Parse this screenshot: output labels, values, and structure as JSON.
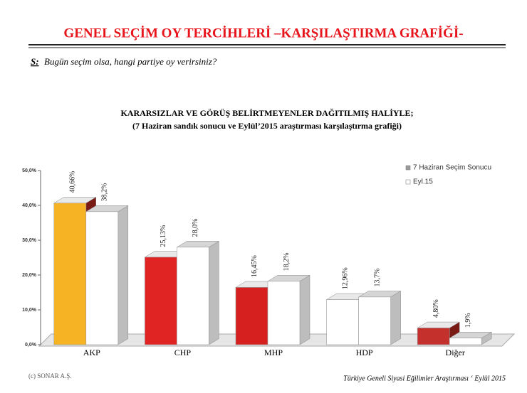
{
  "header": {
    "title": "GENEL SEÇİM OY TERCİHLERİ –KARŞILAŞTIRMA GRAFİĞİ-",
    "question_label": "S:",
    "question": "Bugün seçim olsa, hangi partiye oy verirsiniz?"
  },
  "footer": {
    "left": "(c) SONAR A.Ş.",
    "right": "Türkiye Geneli Siyasi Eğilimler Araştırması ‘ Eylül 2015"
  },
  "chart_data": {
    "type": "bar",
    "title": "KARARSIZLAR VE GÖRÜŞ BELİRTMEYENLER DAĞITILMIŞ HALİYLE;",
    "subtitle": "(7 Haziran sandık sonucu ve Eylül’2015 araştırması karşılaştırma grafiği)",
    "categories": [
      "AKP",
      "CHP",
      "MHP",
      "HDP",
      "Diğer"
    ],
    "series": [
      {
        "name": "7 Haziran Seçim Sonucu",
        "color": "#9a9a9a",
        "colors": [
          "#f6b425",
          "#e02424",
          "#d62020",
          "#ffffff",
          "#c4302b"
        ],
        "values": [
          40.66,
          25.13,
          16.45,
          12.96,
          4.8
        ],
        "value_labels": [
          "40,66%",
          "25,13%",
          "16,45%",
          "12,96%",
          "4,80%"
        ]
      },
      {
        "name": "Eyl.15",
        "color": "#ffffff",
        "values": [
          38.2,
          28.0,
          18.2,
          13.7,
          1.9
        ],
        "value_labels": [
          "38,2%",
          "28,0%",
          "18,2%",
          "13,7%",
          "1,9%"
        ]
      }
    ],
    "ylim": [
      0,
      50
    ],
    "yticks": [
      {
        "value": 0,
        "label": "0,0%"
      },
      {
        "value": 10,
        "label": "10,0%"
      },
      {
        "value": 20,
        "label": "20,0%"
      },
      {
        "value": 30,
        "label": "30,0%"
      },
      {
        "value": 40,
        "label": "40,0%"
      },
      {
        "value": 50,
        "label": "50,0%"
      }
    ],
    "legend": "top-right"
  }
}
